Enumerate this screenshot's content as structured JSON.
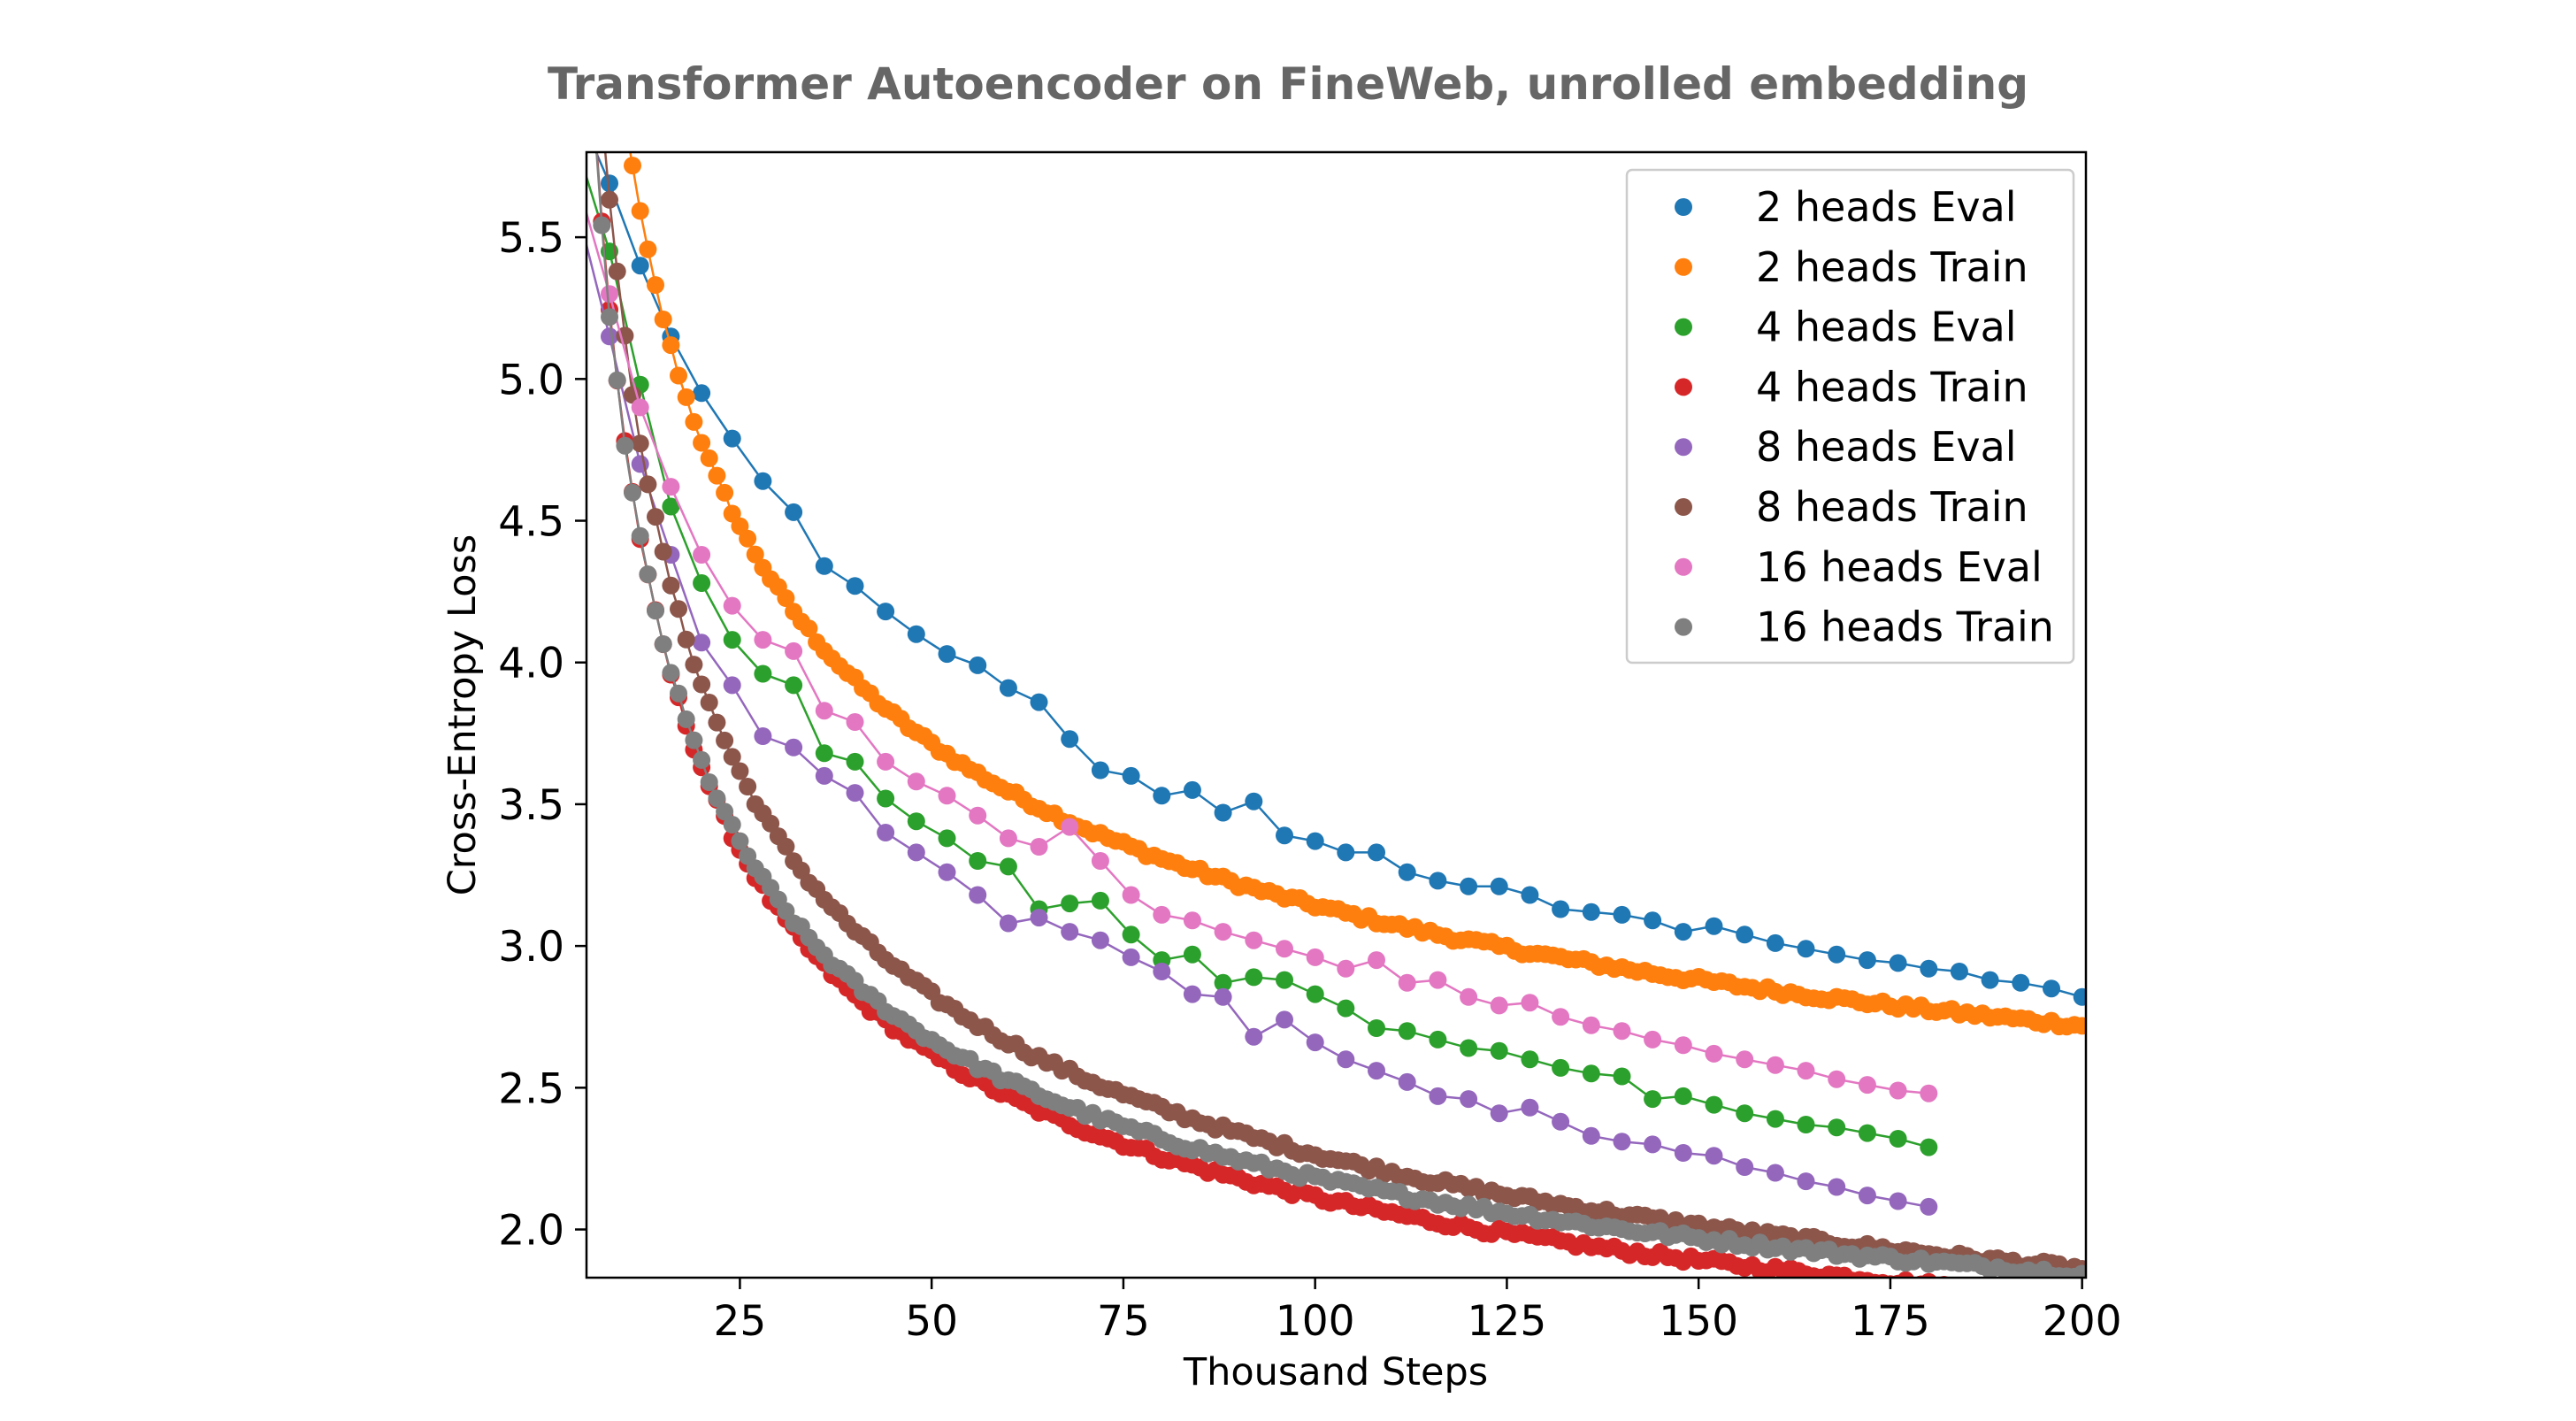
{
  "chart_data": {
    "type": "scatter",
    "title": "Transformer Autoencoder on FineWeb, unrolled embedding",
    "xlabel": "Thousand Steps",
    "ylabel": "Cross-Entropy Loss",
    "xlim": [
      5,
      200.5
    ],
    "ylim": [
      1.83,
      5.8
    ],
    "xticks": [
      25,
      50,
      75,
      100,
      125,
      150,
      175,
      200
    ],
    "yticks": [
      2.0,
      2.5,
      3.0,
      3.5,
      4.0,
      4.5,
      5.0,
      5.5
    ],
    "grid": false,
    "legend_position": "top-right",
    "series": [
      {
        "name": "2 heads Eval",
        "kind": "eval",
        "color": "#1f77b4",
        "x": [
          4,
          8,
          12,
          16,
          20,
          24,
          28,
          32,
          36,
          40,
          44,
          48,
          52,
          56,
          60,
          64,
          68,
          72,
          76,
          80,
          84,
          88,
          92,
          96,
          100,
          104,
          108,
          112,
          116,
          120,
          124,
          128,
          132,
          136,
          140,
          144,
          148,
          152,
          156,
          160,
          164,
          168,
          172,
          176,
          180,
          184,
          188,
          192,
          196,
          200
        ],
        "y": [
          5.94,
          5.69,
          5.4,
          5.15,
          4.95,
          4.79,
          4.64,
          4.53,
          4.34,
          4.27,
          4.18,
          4.1,
          4.03,
          3.99,
          3.91,
          3.86,
          3.73,
          3.62,
          3.6,
          3.53,
          3.55,
          3.47,
          3.51,
          3.39,
          3.37,
          3.33,
          3.33,
          3.26,
          3.23,
          3.21,
          3.21,
          3.18,
          3.13,
          3.12,
          3.11,
          3.09,
          3.05,
          3.07,
          3.04,
          3.01,
          2.99,
          2.97,
          2.95,
          2.94,
          2.92,
          2.91,
          2.88,
          2.87,
          2.85,
          2.82
        ]
      },
      {
        "name": "2 heads Train",
        "kind": "train",
        "color": "#ff7f0e",
        "a": 1.5,
        "b": 11.9,
        "c": 0.43,
        "noise": 0.012
      },
      {
        "name": "4 heads Eval",
        "kind": "eval",
        "color": "#2ca02c",
        "x": [
          4,
          8,
          12,
          16,
          20,
          24,
          28,
          32,
          36,
          40,
          44,
          48,
          52,
          56,
          60,
          64,
          68,
          72,
          76,
          80,
          84,
          88,
          92,
          96,
          100,
          104,
          108,
          112,
          116,
          120,
          124,
          128,
          132,
          136,
          140,
          144,
          148,
          152,
          156,
          160,
          164,
          168,
          172,
          176,
          180
        ],
        "y": [
          5.8,
          5.45,
          4.98,
          4.55,
          4.28,
          4.08,
          3.96,
          3.92,
          3.68,
          3.65,
          3.52,
          3.44,
          3.38,
          3.3,
          3.28,
          3.13,
          3.15,
          3.16,
          3.04,
          2.95,
          2.97,
          2.87,
          2.89,
          2.88,
          2.83,
          2.78,
          2.71,
          2.7,
          2.67,
          2.64,
          2.63,
          2.6,
          2.57,
          2.55,
          2.54,
          2.46,
          2.47,
          2.44,
          2.41,
          2.39,
          2.37,
          2.36,
          2.34,
          2.32,
          2.29
        ]
      },
      {
        "name": "4 heads Train",
        "kind": "train",
        "color": "#d62728",
        "a": 0.92,
        "b": 12.5,
        "c": 0.51,
        "noise": 0.013
      },
      {
        "name": "8 heads Eval",
        "kind": "eval",
        "color": "#9467bd",
        "x": [
          4,
          8,
          12,
          16,
          20,
          24,
          28,
          32,
          36,
          40,
          44,
          48,
          52,
          56,
          60,
          64,
          68,
          72,
          76,
          80,
          84,
          88,
          92,
          96,
          100,
          104,
          108,
          112,
          116,
          120,
          124,
          128,
          132,
          136,
          140,
          144,
          148,
          152,
          156,
          160,
          164,
          168,
          172,
          176,
          180
        ],
        "y": [
          5.58,
          5.15,
          4.7,
          4.38,
          4.07,
          3.92,
          3.74,
          3.7,
          3.6,
          3.54,
          3.4,
          3.33,
          3.26,
          3.18,
          3.08,
          3.1,
          3.05,
          3.02,
          2.96,
          2.91,
          2.83,
          2.82,
          2.68,
          2.74,
          2.66,
          2.6,
          2.56,
          2.52,
          2.47,
          2.46,
          2.41,
          2.43,
          2.38,
          2.33,
          2.31,
          2.3,
          2.27,
          2.26,
          2.22,
          2.2,
          2.17,
          2.15,
          2.12,
          2.1,
          2.08
        ]
      },
      {
        "name": "8 heads Train",
        "kind": "train",
        "color": "#8c564b",
        "a": 0.84,
        "b": 13.0,
        "c": 0.48,
        "noise": 0.013
      },
      {
        "name": "16 heads Eval",
        "kind": "eval",
        "color": "#e377c2",
        "x": [
          4,
          8,
          12,
          16,
          20,
          24,
          28,
          32,
          36,
          40,
          44,
          48,
          52,
          56,
          60,
          64,
          68,
          72,
          76,
          80,
          84,
          88,
          92,
          96,
          100,
          104,
          108,
          112,
          116,
          120,
          124,
          128,
          132,
          136,
          140,
          144,
          148,
          152,
          156,
          160,
          164,
          168,
          172,
          176,
          180
        ],
        "y": [
          5.68,
          5.3,
          4.9,
          4.62,
          4.38,
          4.2,
          4.08,
          4.04,
          3.83,
          3.79,
          3.65,
          3.58,
          3.53,
          3.46,
          3.38,
          3.35,
          3.42,
          3.3,
          3.18,
          3.11,
          3.09,
          3.05,
          3.02,
          2.99,
          2.96,
          2.92,
          2.95,
          2.87,
          2.88,
          2.82,
          2.79,
          2.8,
          2.75,
          2.72,
          2.7,
          2.67,
          2.65,
          2.62,
          2.6,
          2.58,
          2.56,
          2.53,
          2.51,
          2.49,
          2.48
        ]
      },
      {
        "name": "16 heads Train",
        "kind": "train",
        "color": "#7f7f7f",
        "a": 1.06,
        "b": 12.3,
        "c": 0.52,
        "noise": 0.013
      }
    ]
  }
}
